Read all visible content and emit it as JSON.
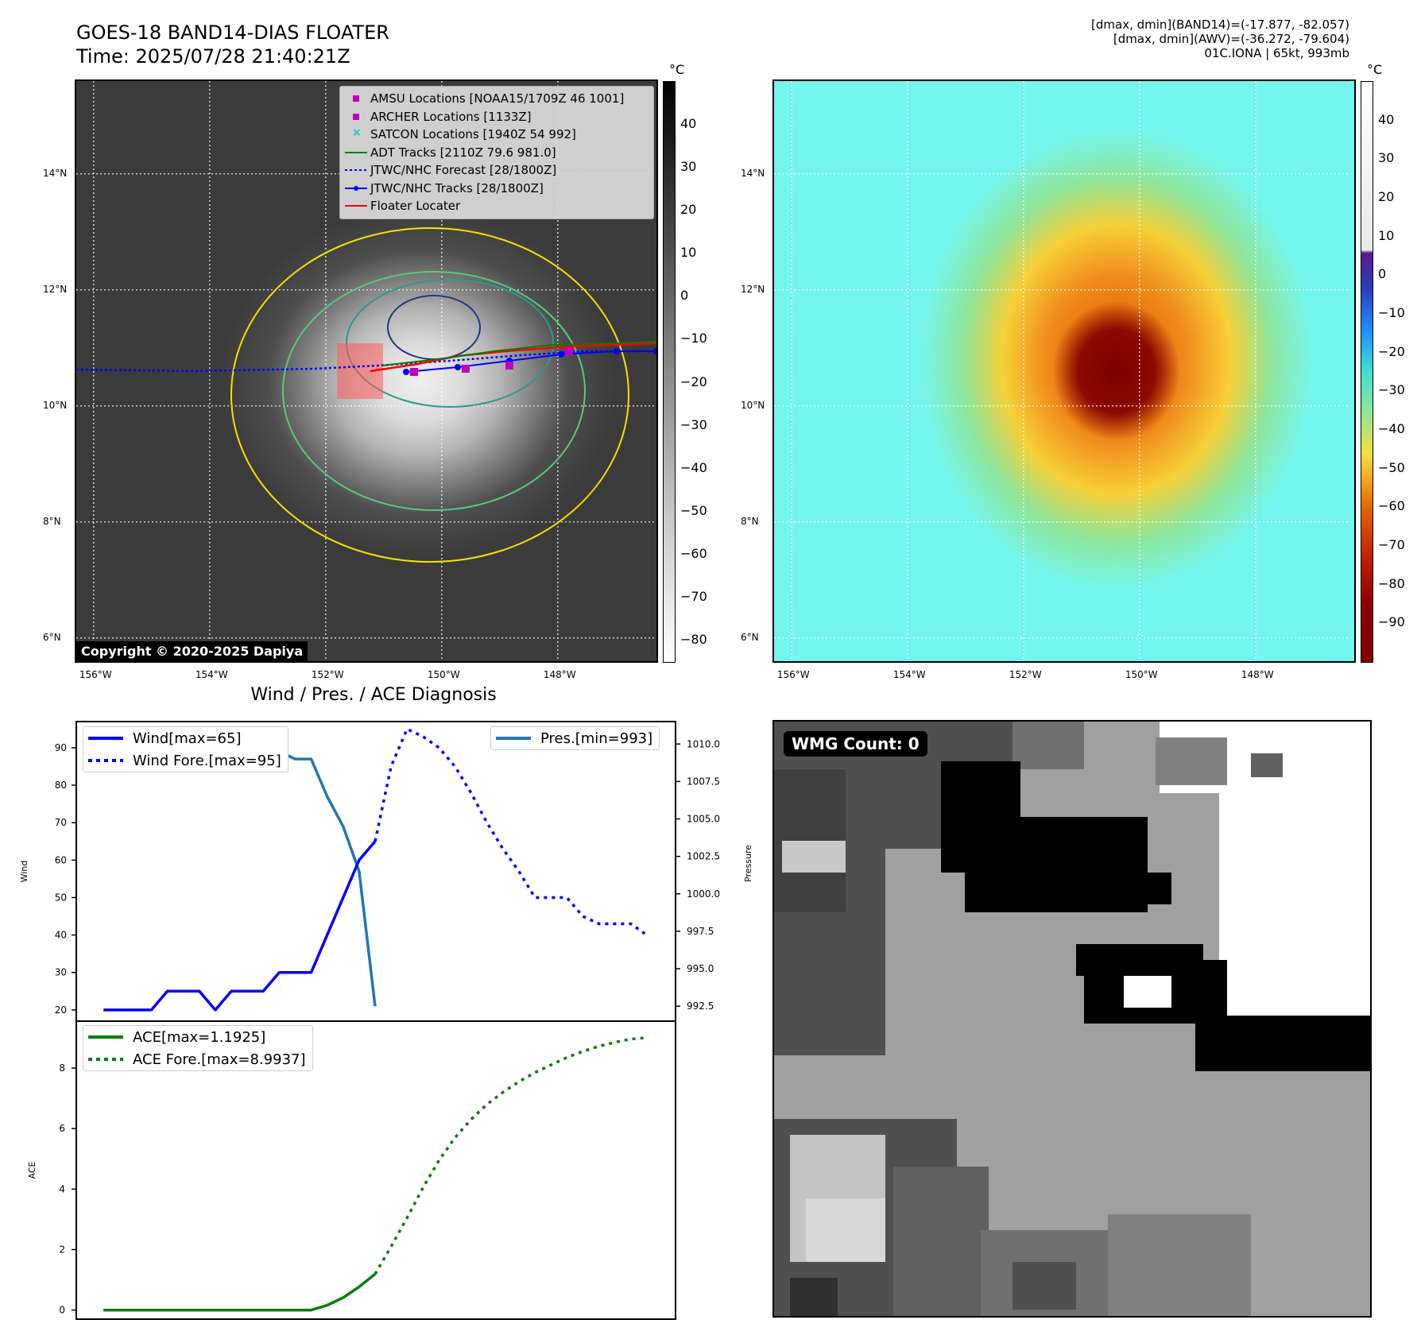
{
  "header": {
    "title_line1": "GOES-18 BAND14-DIAS FLOATER",
    "title_line2": "Time: 2025/07/28 21:40:21Z",
    "info_line1": "[dmax, dmin](BAND14)=(-17.877, -82.057)",
    "info_line2": "[dmax, dmin](AWV)=(-36.272, -79.604)",
    "info_line3": "01C.IONA | 65kt, 993mb"
  },
  "ir_map": {
    "lat_labels": [
      "14°N",
      "12°N",
      "10°N",
      "8°N",
      "6°N"
    ],
    "lat_values": [
      14,
      12,
      10,
      8,
      6
    ],
    "lon_labels": [
      "156°W",
      "154°W",
      "152°W",
      "150°W",
      "148°W"
    ],
    "lon_values": [
      -156,
      -154,
      -152,
      -150,
      -148
    ],
    "lat_range": [
      5.6,
      15.6
    ],
    "lon_range": [
      -156.3,
      -146.3
    ],
    "legend": [
      {
        "label": "AMSU Locations [NOAA15/1709Z 46 1001]",
        "kind": "square",
        "color": "#c000c0"
      },
      {
        "label": "ARCHER Locations [1133Z]",
        "kind": "square",
        "color": "#c000c0"
      },
      {
        "label": "SATCON Locations [1940Z 54 992]",
        "kind": "x",
        "color": "#20c0c0"
      },
      {
        "label": "ADT Tracks [2110Z 79.6 981.0]",
        "kind": "line",
        "color": "#008000"
      },
      {
        "label": "JTWC/NHC Forecast [28/1800Z]",
        "kind": "dotted",
        "color": "#0000ff"
      },
      {
        "label": "JTWC/NHC Tracks [28/1800Z]",
        "kind": "dotline",
        "color": "#0000ff"
      },
      {
        "label": "Floater Locater",
        "kind": "line",
        "color": "#ff0000"
      }
    ],
    "copyright": "Copyright © 2020-2025 Dapiya",
    "colorbar_unit": "°C",
    "colorbar_ticks": [
      "40",
      "30",
      "20",
      "10",
      "0",
      "−10",
      "−20",
      "−30",
      "−40",
      "−50",
      "−60",
      "−70",
      "−80"
    ],
    "colorbar_values": [
      40,
      30,
      20,
      10,
      0,
      -10,
      -20,
      -30,
      -40,
      -50,
      -60,
      -70,
      -80
    ],
    "colorbar_range": [
      -85,
      50
    ]
  },
  "awv_map": {
    "lat_labels": [
      "14°N",
      "12°N",
      "10°N",
      "8°N",
      "6°N"
    ],
    "lat_values": [
      14,
      12,
      10,
      8,
      6
    ],
    "lon_labels": [
      "156°W",
      "154°W",
      "152°W",
      "150°W",
      "148°W"
    ],
    "lon_values": [
      -156,
      -154,
      -152,
      -150,
      -148
    ],
    "colorbar_unit": "°C",
    "colorbar_ticks": [
      "40",
      "30",
      "20",
      "10",
      "0",
      "−10",
      "−20",
      "−30",
      "−40",
      "−50",
      "−60",
      "−70",
      "−80",
      "−90"
    ],
    "colorbar_values": [
      40,
      30,
      20,
      10,
      0,
      -10,
      -20,
      -30,
      -40,
      -50,
      -60,
      -70,
      -80,
      -90
    ],
    "colorbar_range": [
      -100,
      50
    ]
  },
  "wmg": {
    "badge": "WMG Count: 0"
  },
  "colors": {
    "wind": "#0000ff",
    "pressure": "#1f77b4",
    "ace": "#008000",
    "track_red": "#ff0000",
    "adt_green": "#008000",
    "amsu_magenta": "#c000c0"
  },
  "chart_data": [
    {
      "type": "line",
      "title": "Wind / Pres. / ACE Diagnosis",
      "ylabel": "Wind",
      "ylabel_right": "Pressure",
      "ylim": [
        17,
        97
      ],
      "ylim_right": [
        991.5,
        1011.5
      ],
      "yticks": [
        20,
        30,
        40,
        50,
        60,
        70,
        80,
        90
      ],
      "yticks_right": [
        "1010.0",
        "1007.5",
        "1005.0",
        "1002.5",
        "1000.0",
        "997.5",
        "995.0",
        "992.5"
      ],
      "yticks_right_values": [
        1010.0,
        1007.5,
        1005.0,
        1002.5,
        1000.0,
        997.5,
        995.0,
        992.5
      ],
      "xlim": [
        -1.7,
        35.8
      ],
      "series": [
        {
          "name": "Wind[max=65]",
          "axis": "left",
          "style": "solid",
          "x": [
            0,
            1,
            2,
            3,
            4,
            5,
            6,
            7,
            8,
            9,
            10,
            11,
            12,
            13,
            14,
            15,
            16,
            17
          ],
          "values": [
            20,
            20,
            20,
            20,
            25,
            25,
            25,
            20,
            25,
            25,
            25,
            30,
            30,
            30,
            40,
            50,
            60,
            65
          ]
        },
        {
          "name": "Wind Fore.[max=95]",
          "axis": "left",
          "style": "dotted",
          "x": [
            17,
            18,
            19,
            20,
            21,
            22,
            23,
            24,
            25,
            26,
            27,
            28,
            29,
            30,
            31,
            32,
            33,
            34
          ],
          "values": [
            65,
            85,
            95,
            93,
            90,
            85,
            78,
            70,
            63,
            57,
            50,
            50,
            50,
            45,
            43,
            43,
            43,
            40
          ]
        },
        {
          "name": "Pres.[min=993]",
          "axis": "right",
          "style": "solid",
          "x": [
            0,
            1,
            2,
            3,
            4,
            5,
            6,
            7,
            8,
            9,
            10,
            11,
            12,
            13,
            14,
            15,
            16,
            17
          ],
          "values": [
            1010,
            1010,
            1010,
            1009.5,
            1009.5,
            1009,
            1009,
            1010.5,
            1010,
            1010,
            1009,
            1009.5,
            1009,
            1009,
            1006.5,
            1004.5,
            1001.5,
            992.5
          ]
        }
      ]
    },
    {
      "type": "line",
      "ylabel": "ACE",
      "ylim": [
        -0.3,
        9.55
      ],
      "yticks": [
        0,
        2,
        4,
        6,
        8
      ],
      "xlim": [
        -1.7,
        35.8
      ],
      "series": [
        {
          "name": "ACE[max=1.1925]",
          "style": "solid",
          "x": [
            0,
            1,
            2,
            3,
            4,
            5,
            6,
            7,
            8,
            9,
            10,
            11,
            12,
            13,
            14,
            15,
            16,
            17
          ],
          "values": [
            0,
            0,
            0,
            0,
            0,
            0,
            0,
            0,
            0,
            0,
            0,
            0,
            0,
            0,
            0.16,
            0.41,
            0.77,
            1.19
          ]
        },
        {
          "name": "ACE Fore.[max=8.9937]",
          "style": "dotted",
          "x": [
            17,
            18,
            19,
            20,
            21,
            22,
            23,
            24,
            25,
            26,
            27,
            28,
            29,
            30,
            31,
            32,
            33,
            34
          ],
          "values": [
            1.19,
            2.1,
            3.05,
            4.05,
            4.95,
            5.7,
            6.3,
            6.8,
            7.2,
            7.55,
            7.85,
            8.1,
            8.35,
            8.55,
            8.72,
            8.85,
            8.96,
            9.0
          ]
        }
      ]
    }
  ]
}
